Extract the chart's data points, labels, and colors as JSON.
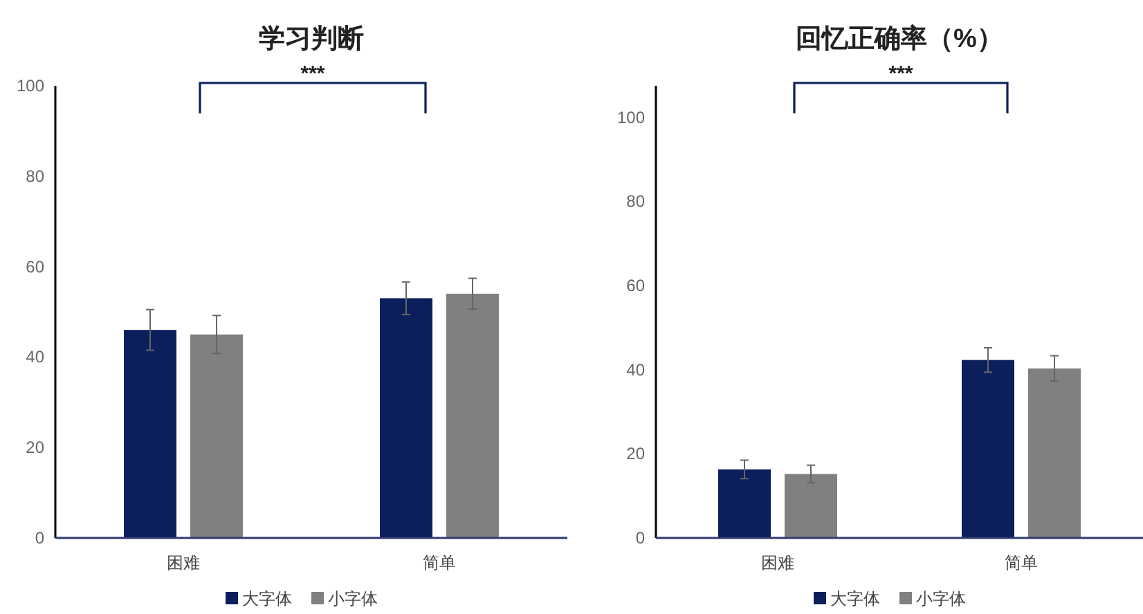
{
  "chart_data": [
    {
      "type": "bar",
      "title": "学习判断",
      "categories": [
        "困难",
        "简单"
      ],
      "series": [
        {
          "name": "大字体",
          "color": "#0a1f5c",
          "values": [
            46,
            53
          ],
          "errors": [
            4.5,
            3.6
          ]
        },
        {
          "name": "小字体",
          "color": "#808080",
          "values": [
            45,
            54
          ],
          "errors": [
            4.2,
            3.4
          ]
        }
      ],
      "ylim": [
        0,
        100
      ],
      "yticks": [
        0,
        20,
        40,
        60,
        80,
        100
      ],
      "annotations": [
        "***"
      ],
      "legend": "bottom",
      "grid": false
    },
    {
      "type": "bar",
      "title": "回忆正确率（%）",
      "categories": [
        "困难",
        "简单"
      ],
      "series": [
        {
          "name": "大字体",
          "color": "#0a1f5c",
          "values": [
            16.3,
            42.3
          ],
          "errors": [
            2.2,
            2.9
          ]
        },
        {
          "name": "小字体",
          "color": "#808080",
          "values": [
            15.2,
            40.3
          ],
          "errors": [
            2.1,
            3.0
          ]
        }
      ],
      "ylim": [
        0,
        107.5
      ],
      "yticks": [
        0,
        20,
        40,
        60,
        80,
        100
      ],
      "annotations": [
        "***"
      ],
      "legend": "bottom",
      "grid": false
    }
  ]
}
